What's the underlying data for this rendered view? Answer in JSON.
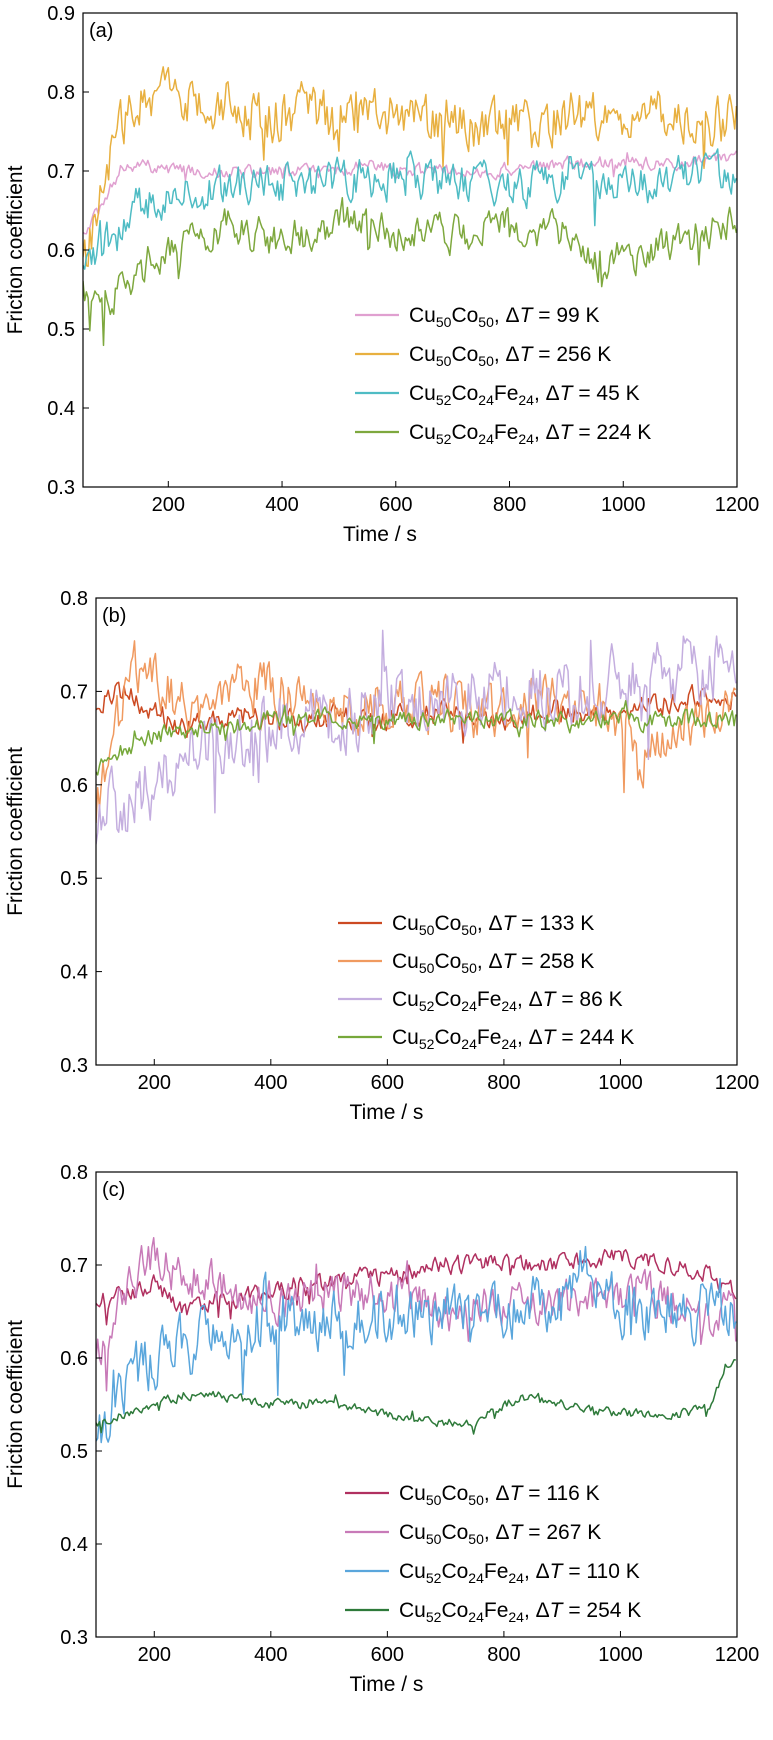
{
  "chart_data": [
    {
      "type": "line",
      "panel_label": "(a)",
      "xlabel": "Time / s",
      "ylabel": "Friction coefficient",
      "xlim": [
        50,
        1200
      ],
      "ylim": [
        0.3,
        0.9
      ],
      "xticks": [
        200,
        400,
        600,
        800,
        1000,
        1200
      ],
      "yticks": [
        "0.3",
        "0.4",
        "0.5",
        "0.6",
        "0.7",
        "0.8",
        "0.9"
      ],
      "grid": false,
      "legend_position": "bottom-right",
      "series": [
        {
          "name_parts": [
            [
              "Cu",
              false
            ],
            [
              "50",
              true
            ],
            [
              "Co",
              false
            ],
            [
              "50",
              true
            ],
            [
              ", ",
              false
            ]
          ],
          "dt_value": " = 99 K",
          "color": "#e0a0d0",
          "x": [
            50,
            80,
            100,
            120,
            150,
            200,
            250,
            300,
            400,
            500,
            550,
            600,
            700,
            800,
            900,
            1000,
            1100,
            1200
          ],
          "y": [
            0.62,
            0.65,
            0.68,
            0.7,
            0.71,
            0.7,
            0.7,
            0.7,
            0.7,
            0.7,
            0.71,
            0.7,
            0.7,
            0.7,
            0.71,
            0.71,
            0.71,
            0.72
          ],
          "noise": 0.008
        },
        {
          "name_parts": [
            [
              "Cu",
              false
            ],
            [
              "50",
              true
            ],
            [
              "Co",
              false
            ],
            [
              "50",
              true
            ],
            [
              ", ",
              false
            ]
          ],
          "dt_value": " = 256 K",
          "color": "#e8b040",
          "x": [
            50,
            80,
            100,
            130,
            160,
            200,
            250,
            300,
            350,
            400,
            450,
            500,
            550,
            600,
            650,
            700,
            750,
            800,
            850,
            900,
            950,
            1000,
            1100,
            1200
          ],
          "y": [
            0.58,
            0.66,
            0.72,
            0.78,
            0.79,
            0.8,
            0.78,
            0.79,
            0.77,
            0.77,
            0.78,
            0.76,
            0.78,
            0.77,
            0.76,
            0.77,
            0.75,
            0.77,
            0.76,
            0.77,
            0.77,
            0.77,
            0.77,
            0.76
          ],
          "noise": 0.03
        },
        {
          "name_parts": [
            [
              "Cu",
              false
            ],
            [
              "52",
              true
            ],
            [
              "Co",
              false
            ],
            [
              "24",
              true
            ],
            [
              "Fe",
              false
            ],
            [
              "24",
              true
            ],
            [
              ", ",
              false
            ]
          ],
          "dt_value": " = 45 K",
          "color": "#4fbcc4",
          "x": [
            50,
            100,
            150,
            200,
            250,
            300,
            400,
            500,
            600,
            700,
            800,
            900,
            1000,
            1100,
            1200
          ],
          "y": [
            0.57,
            0.62,
            0.66,
            0.67,
            0.68,
            0.68,
            0.68,
            0.69,
            0.69,
            0.69,
            0.68,
            0.69,
            0.68,
            0.69,
            0.7
          ],
          "noise": 0.025
        },
        {
          "name_parts": [
            [
              "Cu",
              false
            ],
            [
              "52",
              true
            ],
            [
              "Co",
              false
            ],
            [
              "24",
              true
            ],
            [
              "Fe",
              false
            ],
            [
              "24",
              true
            ],
            [
              ", ",
              false
            ]
          ],
          "dt_value": " = 224 K",
          "color": "#7ea83e",
          "x": [
            50,
            80,
            100,
            150,
            200,
            250,
            300,
            400,
            500,
            550,
            600,
            700,
            800,
            900,
            950,
            1000,
            1100,
            1150,
            1200
          ],
          "y": [
            0.55,
            0.54,
            0.54,
            0.57,
            0.59,
            0.61,
            0.63,
            0.61,
            0.63,
            0.64,
            0.62,
            0.62,
            0.63,
            0.62,
            0.59,
            0.59,
            0.61,
            0.62,
            0.64
          ],
          "noise": 0.022
        }
      ]
    },
    {
      "type": "line",
      "panel_label": "(b)",
      "xlabel": "Time / s",
      "ylabel": "Friction coefficient",
      "xlim": [
        100,
        1200
      ],
      "ylim": [
        0.3,
        0.8
      ],
      "xticks": [
        200,
        400,
        600,
        800,
        1000,
        1200
      ],
      "yticks": [
        "0.3",
        "0.4",
        "0.5",
        "0.6",
        "0.7",
        "0.8"
      ],
      "grid": false,
      "legend_position": "bottom-right",
      "series": [
        {
          "name_parts": [
            [
              "Cu",
              false
            ],
            [
              "50",
              true
            ],
            [
              "Co",
              false
            ],
            [
              "50",
              true
            ],
            [
              ", ",
              false
            ]
          ],
          "dt_value": " = 133 K",
          "color": "#cc4a22",
          "x": [
            100,
            150,
            200,
            250,
            300,
            400,
            500,
            600,
            700,
            800,
            900,
            1000,
            1100,
            1200
          ],
          "y": [
            0.69,
            0.7,
            0.68,
            0.66,
            0.67,
            0.67,
            0.67,
            0.67,
            0.68,
            0.67,
            0.68,
            0.68,
            0.69,
            0.7
          ],
          "noise": 0.012
        },
        {
          "name_parts": [
            [
              "Cu",
              false
            ],
            [
              "50",
              true
            ],
            [
              "Co",
              false
            ],
            [
              "50",
              true
            ],
            [
              ", ",
              false
            ]
          ],
          "dt_value": " = 258 K",
          "color": "#f09a60",
          "x": [
            100,
            130,
            160,
            200,
            250,
            300,
            350,
            400,
            500,
            600,
            700,
            800,
            900,
            1000,
            1030,
            1100,
            1200
          ],
          "y": [
            0.58,
            0.65,
            0.73,
            0.72,
            0.68,
            0.7,
            0.71,
            0.7,
            0.69,
            0.68,
            0.68,
            0.68,
            0.69,
            0.68,
            0.62,
            0.67,
            0.68
          ],
          "noise": 0.028
        },
        {
          "name_parts": [
            [
              "Cu",
              false
            ],
            [
              "52",
              true
            ],
            [
              "Co",
              false
            ],
            [
              "24",
              true
            ],
            [
              "Fe",
              false
            ],
            [
              "24",
              true
            ],
            [
              ", ",
              false
            ]
          ],
          "dt_value": " = 86 K",
          "color": "#c4aedf",
          "x": [
            100,
            150,
            200,
            250,
            300,
            400,
            500,
            600,
            700,
            800,
            900,
            1000,
            1100,
            1200
          ],
          "y": [
            0.56,
            0.58,
            0.6,
            0.62,
            0.65,
            0.66,
            0.67,
            0.68,
            0.69,
            0.7,
            0.7,
            0.71,
            0.72,
            0.73
          ],
          "noise": 0.035
        },
        {
          "name_parts": [
            [
              "Cu",
              false
            ],
            [
              "52",
              true
            ],
            [
              "Co",
              false
            ],
            [
              "24",
              true
            ],
            [
              "Fe",
              false
            ],
            [
              "24",
              true
            ],
            [
              ", ",
              false
            ]
          ],
          "dt_value": " = 244 K",
          "color": "#76a83a",
          "x": [
            100,
            150,
            200,
            250,
            300,
            400,
            500,
            600,
            700,
            800,
            900,
            1000,
            1100,
            1200
          ],
          "y": [
            0.62,
            0.64,
            0.65,
            0.66,
            0.66,
            0.67,
            0.67,
            0.67,
            0.67,
            0.67,
            0.67,
            0.67,
            0.67,
            0.67
          ],
          "noise": 0.01
        }
      ]
    },
    {
      "type": "line",
      "panel_label": "(c)",
      "xlabel": "Time / s",
      "ylabel": "Friction coefficient",
      "xlim": [
        100,
        1200
      ],
      "ylim": [
        0.3,
        0.8
      ],
      "xticks": [
        200,
        400,
        600,
        800,
        1000,
        1200
      ],
      "yticks": [
        "0.3",
        "0.4",
        "0.5",
        "0.6",
        "0.7",
        "0.8"
      ],
      "grid": false,
      "legend_position": "bottom-right",
      "series": [
        {
          "name_parts": [
            [
              "Cu",
              false
            ],
            [
              "50",
              true
            ],
            [
              "Co",
              false
            ],
            [
              "50",
              true
            ],
            [
              ", ",
              false
            ]
          ],
          "dt_value": " = 116 K",
          "color": "#b03060",
          "x": [
            100,
            150,
            200,
            250,
            300,
            400,
            500,
            600,
            700,
            800,
            900,
            1000,
            1100,
            1150,
            1200
          ],
          "y": [
            0.66,
            0.67,
            0.68,
            0.65,
            0.66,
            0.67,
            0.68,
            0.69,
            0.7,
            0.7,
            0.7,
            0.71,
            0.7,
            0.69,
            0.67
          ],
          "noise": 0.01
        },
        {
          "name_parts": [
            [
              "Cu",
              false
            ],
            [
              "50",
              true
            ],
            [
              "Co",
              false
            ],
            [
              "50",
              true
            ],
            [
              ", ",
              false
            ]
          ],
          "dt_value": " = 267 K",
          "color": "#c87ab8",
          "x": [
            100,
            150,
            200,
            250,
            300,
            350,
            400,
            500,
            600,
            700,
            800,
            900,
            1000,
            1100,
            1150,
            1200
          ],
          "y": [
            0.6,
            0.68,
            0.71,
            0.68,
            0.69,
            0.66,
            0.66,
            0.67,
            0.67,
            0.65,
            0.66,
            0.66,
            0.67,
            0.66,
            0.64,
            0.66
          ],
          "noise": 0.022
        },
        {
          "name_parts": [
            [
              "Cu",
              false
            ],
            [
              "52",
              true
            ],
            [
              "Co",
              false
            ],
            [
              "24",
              true
            ],
            [
              "Fe",
              false
            ],
            [
              "24",
              true
            ],
            [
              ", ",
              false
            ]
          ],
          "dt_value": " = 110 K",
          "color": "#5aa6dc",
          "x": [
            100,
            130,
            160,
            200,
            250,
            300,
            400,
            500,
            600,
            700,
            800,
            900,
            930,
            1000,
            1100,
            1200
          ],
          "y": [
            0.51,
            0.55,
            0.58,
            0.6,
            0.61,
            0.63,
            0.64,
            0.64,
            0.65,
            0.65,
            0.65,
            0.66,
            0.7,
            0.65,
            0.65,
            0.66
          ],
          "noise": 0.03
        },
        {
          "name_parts": [
            [
              "Cu",
              false
            ],
            [
              "52",
              true
            ],
            [
              "Co",
              false
            ],
            [
              "24",
              true
            ],
            [
              "Fe",
              false
            ],
            [
              "24",
              true
            ],
            [
              ", ",
              false
            ]
          ],
          "dt_value": " = 254 K",
          "color": "#2e7a3a",
          "x": [
            100,
            150,
            200,
            250,
            300,
            400,
            500,
            600,
            700,
            750,
            800,
            850,
            900,
            1000,
            1100,
            1150,
            1180,
            1200
          ],
          "y": [
            0.53,
            0.54,
            0.55,
            0.56,
            0.56,
            0.55,
            0.55,
            0.54,
            0.53,
            0.53,
            0.55,
            0.56,
            0.55,
            0.54,
            0.54,
            0.545,
            0.59,
            0.6
          ],
          "noise": 0.005
        }
      ]
    }
  ]
}
